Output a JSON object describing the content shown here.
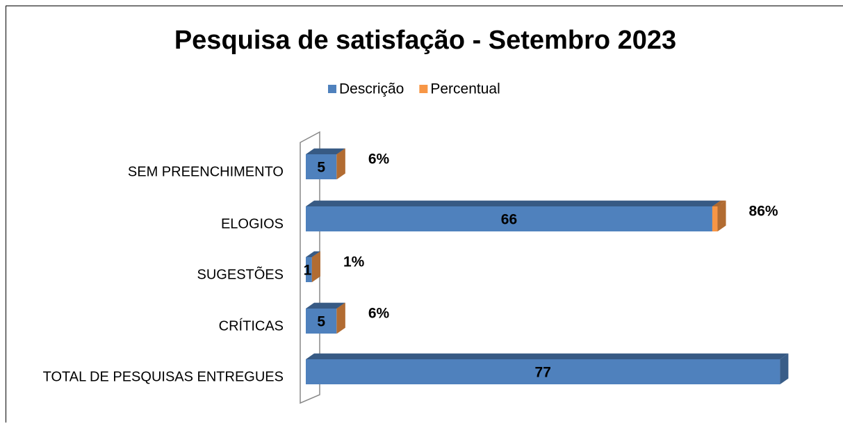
{
  "chart_data": {
    "type": "bar3d_stacked_horizontal",
    "title": "Pesquisa de satisfação - Setembro 2023",
    "categories": [
      "SEM PREENCHIMENTO",
      "ELOGIOS",
      "SUGESTÕES",
      "CRÍTICAS",
      "TOTAL DE PESQUISAS ENTREGUES"
    ],
    "series": [
      {
        "name": "Descrição",
        "color": "#4f81bd",
        "values": [
          5,
          66,
          1,
          5,
          77
        ]
      },
      {
        "name": "Percentual",
        "color": "#f79646",
        "values": [
          0.06,
          0.86,
          0.01,
          0.06,
          null
        ],
        "value_labels": [
          "6%",
          "86%",
          "1%",
          "6%",
          null
        ]
      }
    ],
    "xlim": [
      0,
      80
    ],
    "legend": "top"
  }
}
